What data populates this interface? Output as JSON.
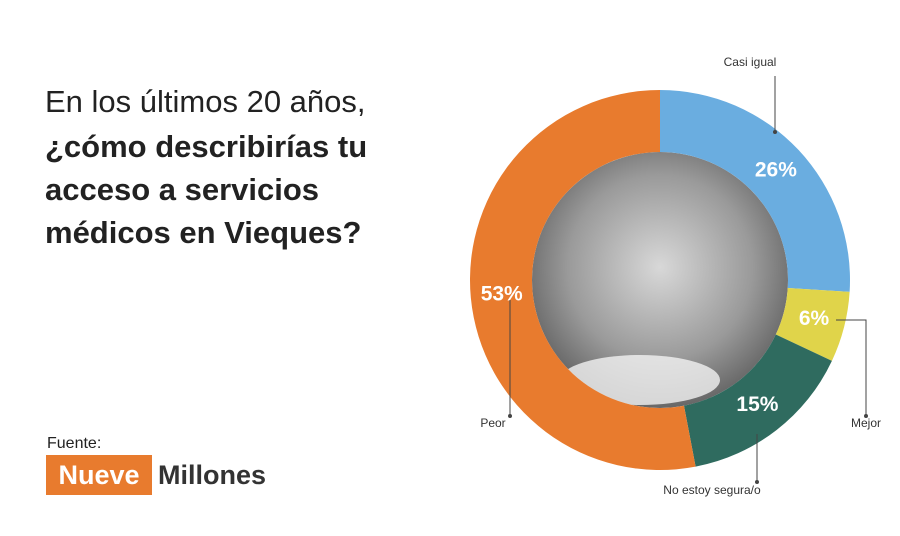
{
  "chart_data": {
    "type": "pie",
    "title": [
      "En los últimos 20 años,",
      "¿cómo describirías tu",
      "acceso a servicios",
      "médicos en Vieques?"
    ],
    "source_label": "Fuente:",
    "source_logo": [
      "Nueve",
      "Millones"
    ],
    "categories": [
      "Casi igual",
      "Mejor",
      "No estoy segura/o",
      "Peor"
    ],
    "values": [
      26,
      6,
      15,
      53
    ],
    "value_labels": [
      "26%",
      "6%",
      "15%",
      "53%"
    ],
    "colors": [
      "#6aade0",
      "#e0d44a",
      "#2f6b5f",
      "#e87b2e"
    ]
  }
}
